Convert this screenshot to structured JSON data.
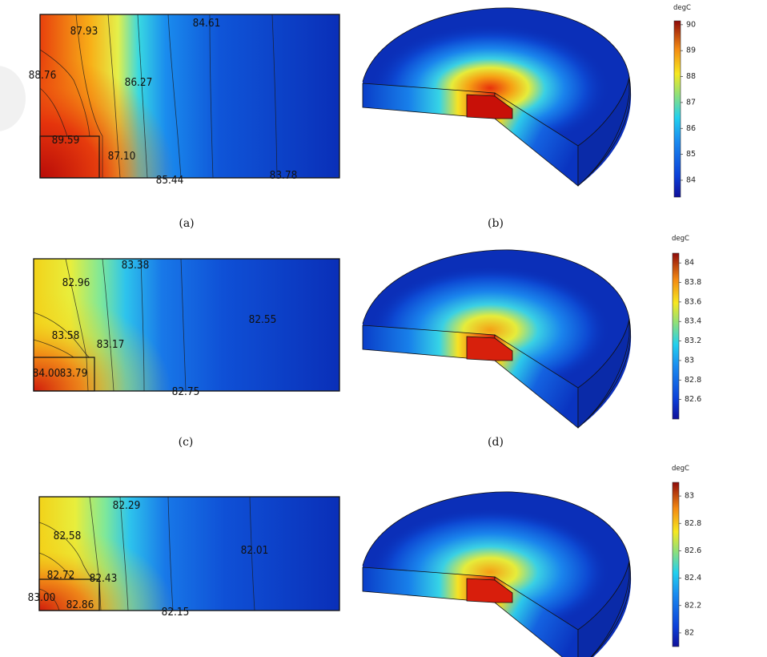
{
  "panels": [
    {
      "cross_caption": "(a)",
      "solid_caption": "(b)",
      "contour_labels": [
        "87.93",
        "84.61",
        "88.76",
        "86.27",
        "89.59",
        "87.10",
        "85.44",
        "83.78"
      ],
      "colorbar": {
        "unit": "degC",
        "min": 83.35,
        "max": 90.15,
        "ticks": [
          "90",
          "89",
          "88",
          "87",
          "86",
          "85",
          "84"
        ]
      },
      "colors": {
        "hot": "#c81008",
        "edge_cold": "#0a2fb8"
      }
    },
    {
      "cross_caption": "(c)",
      "solid_caption": "(d)",
      "contour_labels": [
        "82.96",
        "83.38",
        "82.55",
        "83.58",
        "83.17",
        "84.00",
        "83.79",
        "82.75"
      ],
      "colorbar": {
        "unit": "degC",
        "min": 82.4,
        "max": 84.1,
        "ticks": [
          "84",
          "83.8",
          "83.6",
          "83.4",
          "83.2",
          "83",
          "82.8",
          "82.6"
        ]
      },
      "colors": {
        "hot": "#d7200c",
        "edge_cold": "#0a2fb8"
      }
    },
    {
      "cross_caption": "",
      "solid_caption": "",
      "contour_labels": [
        "82.29",
        "82.58",
        "82.01",
        "82.72",
        "82.43",
        "83.00",
        "82.86",
        "82.15"
      ],
      "colorbar": {
        "unit": "degC",
        "min": 81.9,
        "max": 83.1,
        "ticks": [
          "83",
          "82.8",
          "82.6",
          "82.4",
          "82.2",
          "82"
        ]
      },
      "colors": {
        "hot": "#d81e0c",
        "edge_cold": "#0a2fb8"
      }
    }
  ]
}
